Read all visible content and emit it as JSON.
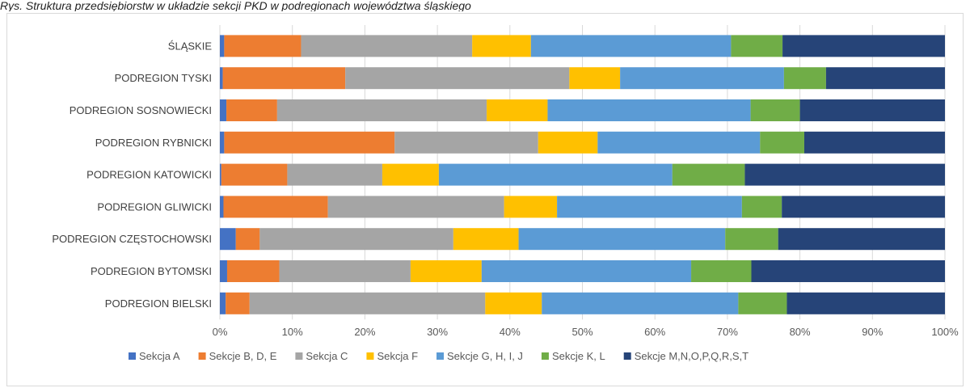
{
  "caption": "Rys. Struktura przedsiębiorstw w układzie sekcji PKD w podregionach województwa śląskiego",
  "chart_data": {
    "type": "bar",
    "orientation": "horizontal",
    "stacked": "percent",
    "categories": [
      "ŚLĄSKIE",
      "PODREGION TYSKI",
      "PODREGION SOSNOWIECKI",
      "PODREGION RYBNICKI",
      "PODREGION KATOWICKI",
      "PODREGION GLIWICKI",
      "PODREGION CZĘSTOCHOWSKI",
      "PODREGION BYTOMSKI",
      "PODREGION BIELSKI"
    ],
    "series": [
      {
        "name": "Sekcja A",
        "color": "#4472C4",
        "values": [
          0.6,
          0.4,
          0.9,
          0.6,
          0.2,
          0.5,
          2.2,
          1.0,
          0.8
        ]
      },
      {
        "name": "Sekcje B, D, E",
        "color": "#ED7D31",
        "values": [
          10.6,
          16.9,
          7.0,
          23.5,
          9.1,
          14.4,
          3.3,
          7.2,
          3.3
        ]
      },
      {
        "name": "Sekcja C",
        "color": "#A5A5A5",
        "values": [
          23.6,
          30.9,
          28.9,
          19.8,
          13.1,
          24.3,
          26.7,
          18.1,
          32.5
        ]
      },
      {
        "name": "Sekcja F",
        "color": "#FFC000",
        "values": [
          8.1,
          7.0,
          8.4,
          8.2,
          7.8,
          7.3,
          9.0,
          9.8,
          7.8
        ]
      },
      {
        "name": "Sekcje G, H, I, J",
        "color": "#5B9BD5",
        "values": [
          27.6,
          22.6,
          28.0,
          22.4,
          32.2,
          25.5,
          28.5,
          28.9,
          27.1
        ]
      },
      {
        "name": "Sekcje K, L",
        "color": "#70AD47",
        "values": [
          7.1,
          5.8,
          6.8,
          6.1,
          10.0,
          5.5,
          7.3,
          8.3,
          6.7
        ]
      },
      {
        "name": "Sekcje M,N,O,P,Q,R,S,T",
        "color": "#264478",
        "values": [
          22.4,
          16.4,
          20.0,
          19.4,
          27.6,
          22.5,
          23.0,
          26.7,
          21.8
        ]
      }
    ],
    "xlim": [
      0,
      100
    ],
    "x_ticks": [
      "0%",
      "10%",
      "20%",
      "30%",
      "40%",
      "50%",
      "60%",
      "70%",
      "80%",
      "90%",
      "100%"
    ],
    "xlabel": "",
    "ylabel": "",
    "grid": true,
    "legend_position": "bottom"
  }
}
